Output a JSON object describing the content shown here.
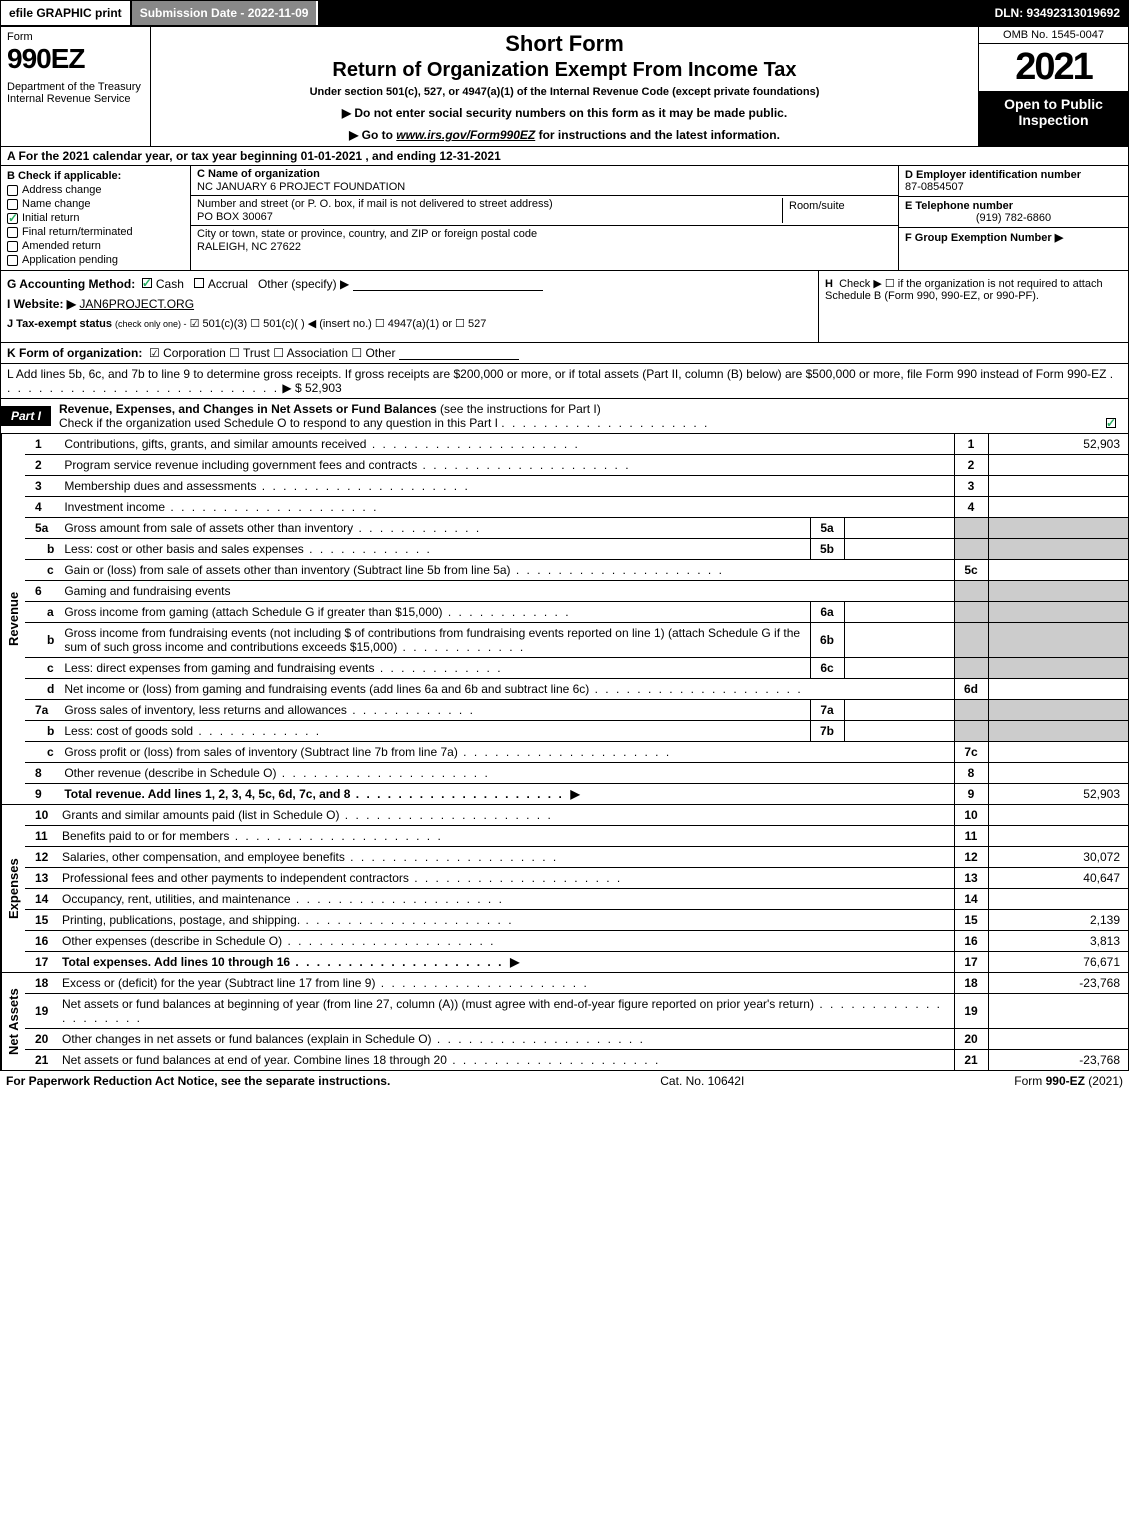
{
  "topbar": {
    "efile": "efile GRAPHIC print",
    "submission": "Submission Date - 2022-11-09",
    "dln": "DLN: 93492313019692"
  },
  "header": {
    "form_word": "Form",
    "form_num": "990EZ",
    "dept": "Department of the Treasury\nInternal Revenue Service",
    "title1": "Short Form",
    "title2": "Return of Organization Exempt From Income Tax",
    "sub": "Under section 501(c), 527, or 4947(a)(1) of the Internal Revenue Code (except private foundations)",
    "instr1": "▶ Do not enter social security numbers on this form as it may be made public.",
    "instr2_pre": "▶ Go to ",
    "instr2_link": "www.irs.gov/Form990EZ",
    "instr2_post": " for instructions and the latest information.",
    "omb": "OMB No. 1545-0047",
    "year": "2021",
    "open": "Open to Public Inspection"
  },
  "rowA": "A  For the 2021 calendar year, or tax year beginning 01-01-2021 , and ending 12-31-2021",
  "B": {
    "hdr": "B  Check if applicable:",
    "opts": [
      {
        "label": "Address change",
        "checked": false
      },
      {
        "label": "Name change",
        "checked": false
      },
      {
        "label": "Initial return",
        "checked": true
      },
      {
        "label": "Final return/terminated",
        "checked": false
      },
      {
        "label": "Amended return",
        "checked": false
      },
      {
        "label": "Application pending",
        "checked": false
      }
    ]
  },
  "C": {
    "name_lbl": "C Name of organization",
    "name": "NC JANUARY 6 PROJECT FOUNDATION",
    "street_lbl": "Number and street (or P. O. box, if mail is not delivered to street address)",
    "street": "PO BOX 30067",
    "room_lbl": "Room/suite",
    "city_lbl": "City or town, state or province, country, and ZIP or foreign postal code",
    "city": "RALEIGH, NC  27622"
  },
  "D": {
    "lbl": "D Employer identification number",
    "val": "87-0854507"
  },
  "E": {
    "lbl": "E Telephone number",
    "val": "(919) 782-6860"
  },
  "F": {
    "lbl": "F Group Exemption Number ▶",
    "val": ""
  },
  "G": {
    "lbl": "G Accounting Method:",
    "cash": "Cash",
    "accrual": "Accrual",
    "other": "Other (specify) ▶"
  },
  "H": {
    "lbl": "H",
    "txt": "Check ▶ ☐ if the organization is not required to attach Schedule B (Form 990, 990-EZ, or 990-PF)."
  },
  "I": {
    "lbl": "I Website: ▶",
    "val": "JAN6PROJECT.ORG"
  },
  "J": {
    "lbl": "J Tax-exempt status",
    "note": "(check only one) -",
    "opts": "☑ 501(c)(3)  ☐ 501(c)(  ) ◀ (insert no.)  ☐ 4947(a)(1) or  ☐ 527"
  },
  "K": {
    "lbl": "K Form of organization:",
    "opts": "☑ Corporation   ☐ Trust   ☐ Association   ☐ Other"
  },
  "L": {
    "txt": "L Add lines 5b, 6c, and 7b to line 9 to determine gross receipts. If gross receipts are $200,000 or more, or if total assets (Part II, column (B) below) are $500,000 or more, file Form 990 instead of Form 990-EZ",
    "amt_lbl": "▶ $ ",
    "amt": "52,903"
  },
  "part1": {
    "tag": "Part I",
    "title": "Revenue, Expenses, and Changes in Net Assets or Fund Balances ",
    "note": "(see the instructions for Part I)",
    "sub": "Check if the organization used Schedule O to respond to any question in this Part I",
    "checked": true
  },
  "revenue_rows": [
    {
      "n": "1",
      "d": "Contributions, gifts, grants, and similar amounts received",
      "ln": "1",
      "amt": "52,903"
    },
    {
      "n": "2",
      "d": "Program service revenue including government fees and contracts",
      "ln": "2",
      "amt": ""
    },
    {
      "n": "3",
      "d": "Membership dues and assessments",
      "ln": "3",
      "amt": ""
    },
    {
      "n": "4",
      "d": "Investment income",
      "ln": "4",
      "amt": ""
    },
    {
      "n": "5a",
      "d": "Gross amount from sale of assets other than inventory",
      "mini": "5a",
      "shade": true
    },
    {
      "n": "b",
      "d": "Less: cost or other basis and sales expenses",
      "mini": "5b",
      "shade": true
    },
    {
      "n": "c",
      "d": "Gain or (loss) from sale of assets other than inventory (Subtract line 5b from line 5a)",
      "ln": "5c",
      "amt": ""
    },
    {
      "n": "6",
      "d": "Gaming and fundraising events",
      "shade": true,
      "noborder": true
    },
    {
      "n": "a",
      "d": "Gross income from gaming (attach Schedule G if greater than $15,000)",
      "mini": "6a",
      "shade": true
    },
    {
      "n": "b",
      "d": "Gross income from fundraising events (not including $              of contributions from fundraising events reported on line 1) (attach Schedule G if the sum of such gross income and contributions exceeds $15,000)",
      "mini": "6b",
      "shade": true
    },
    {
      "n": "c",
      "d": "Less: direct expenses from gaming and fundraising events",
      "mini": "6c",
      "shade": true
    },
    {
      "n": "d",
      "d": "Net income or (loss) from gaming and fundraising events (add lines 6a and 6b and subtract line 6c)",
      "ln": "6d",
      "amt": ""
    },
    {
      "n": "7a",
      "d": "Gross sales of inventory, less returns and allowances",
      "mini": "7a",
      "shade": true
    },
    {
      "n": "b",
      "d": "Less: cost of goods sold",
      "mini": "7b",
      "shade": true
    },
    {
      "n": "c",
      "d": "Gross profit or (loss) from sales of inventory (Subtract line 7b from line 7a)",
      "ln": "7c",
      "amt": ""
    },
    {
      "n": "8",
      "d": "Other revenue (describe in Schedule O)",
      "ln": "8",
      "amt": ""
    },
    {
      "n": "9",
      "d": "Total revenue. Add lines 1, 2, 3, 4, 5c, 6d, 7c, and 8",
      "ln": "9",
      "amt": "52,903",
      "bold": true,
      "arrow": true
    }
  ],
  "expense_rows": [
    {
      "n": "10",
      "d": "Grants and similar amounts paid (list in Schedule O)",
      "ln": "10",
      "amt": ""
    },
    {
      "n": "11",
      "d": "Benefits paid to or for members",
      "ln": "11",
      "amt": ""
    },
    {
      "n": "12",
      "d": "Salaries, other compensation, and employee benefits",
      "ln": "12",
      "amt": "30,072"
    },
    {
      "n": "13",
      "d": "Professional fees and other payments to independent contractors",
      "ln": "13",
      "amt": "40,647"
    },
    {
      "n": "14",
      "d": "Occupancy, rent, utilities, and maintenance",
      "ln": "14",
      "amt": ""
    },
    {
      "n": "15",
      "d": "Printing, publications, postage, and shipping.",
      "ln": "15",
      "amt": "2,139"
    },
    {
      "n": "16",
      "d": "Other expenses (describe in Schedule O)",
      "ln": "16",
      "amt": "3,813"
    },
    {
      "n": "17",
      "d": "Total expenses. Add lines 10 through 16",
      "ln": "17",
      "amt": "76,671",
      "bold": true,
      "arrow": true
    }
  ],
  "net_rows": [
    {
      "n": "18",
      "d": "Excess or (deficit) for the year (Subtract line 17 from line 9)",
      "ln": "18",
      "amt": "-23,768"
    },
    {
      "n": "19",
      "d": "Net assets or fund balances at beginning of year (from line 27, column (A)) (must agree with end-of-year figure reported on prior year's return)",
      "ln": "19",
      "amt": ""
    },
    {
      "n": "20",
      "d": "Other changes in net assets or fund balances (explain in Schedule O)",
      "ln": "20",
      "amt": ""
    },
    {
      "n": "21",
      "d": "Net assets or fund balances at end of year. Combine lines 18 through 20",
      "ln": "21",
      "amt": "-23,768"
    }
  ],
  "sections": {
    "rev": "Revenue",
    "exp": "Expenses",
    "net": "Net Assets"
  },
  "footer": {
    "l": "For Paperwork Reduction Act Notice, see the separate instructions.",
    "c": "Cat. No. 10642I",
    "r_pre": "Form ",
    "r_bold": "990-EZ",
    "r_post": " (2021)"
  },
  "colors": {
    "black": "#000000",
    "white": "#ffffff",
    "shade": "#cccccc",
    "topbar_sub": "#888888",
    "check_green": "#27ae60"
  }
}
